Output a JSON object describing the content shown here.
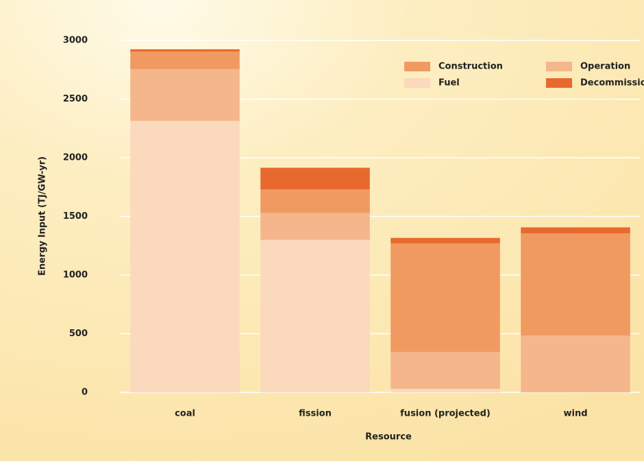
{
  "chart_data": {
    "type": "stacked_bar",
    "x_label": "Resource",
    "y_label": "Energy Input (TJ/GW-yr)",
    "categories": [
      "coal",
      "fission",
      "fusion (projected)",
      "wind"
    ],
    "series": [
      {
        "name": "Fuel",
        "color": "#fbd9bd",
        "values": [
          2315,
          1300,
          30,
          0
        ]
      },
      {
        "name": "Operation",
        "color": "#f5b68b",
        "values": [
          440,
          230,
          315,
          485
        ]
      },
      {
        "name": "Construction",
        "color": "#f09a62",
        "values": [
          150,
          200,
          925,
          870
        ]
      },
      {
        "name": "Decommissioning",
        "color": "#e8692e",
        "values": [
          20,
          185,
          47,
          52
        ]
      }
    ],
    "ylim": [
      0,
      3000
    ],
    "yticks": [
      0,
      500,
      1000,
      1500,
      2000,
      2500,
      3000
    ],
    "grid": true,
    "legend": "upper right"
  }
}
